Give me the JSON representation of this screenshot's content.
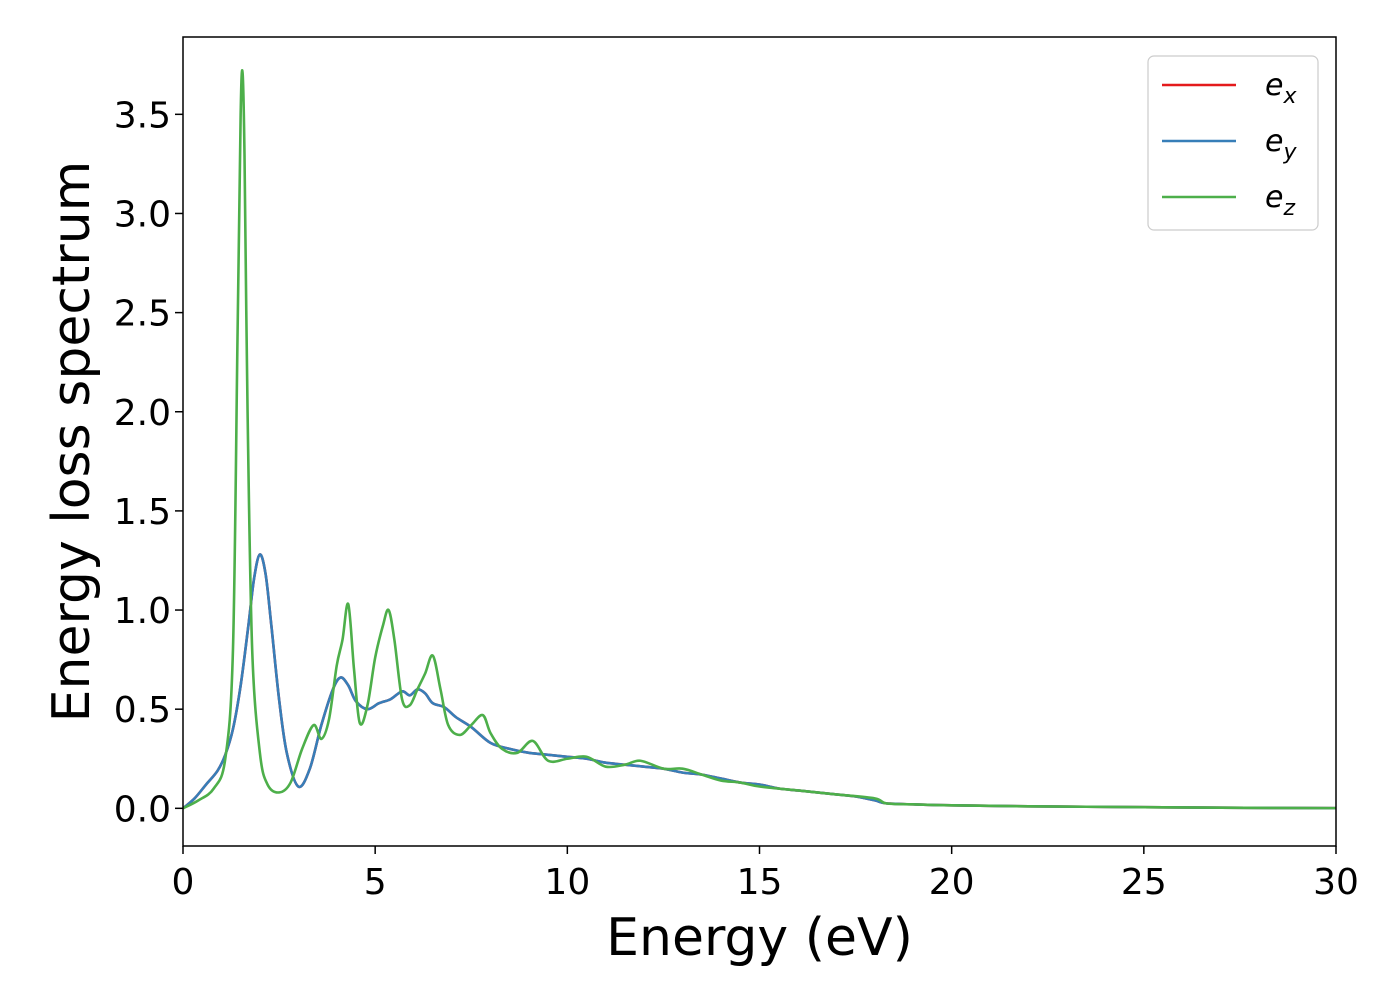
{
  "chart_data": {
    "type": "line",
    "title": "",
    "xlabel": "Energy (eV)",
    "ylabel": "Energy loss spectrum",
    "xlim": [
      0,
      30
    ],
    "ylim": [
      -0.19,
      3.89
    ],
    "xticks": [
      0,
      5,
      10,
      15,
      20,
      25,
      30
    ],
    "xtick_labels": [
      "0",
      "5",
      "10",
      "15",
      "20",
      "25",
      "30"
    ],
    "yticks": [
      0.0,
      0.5,
      1.0,
      1.5,
      2.0,
      2.5,
      3.0,
      3.5
    ],
    "ytick_labels": [
      "0.0",
      "0.5",
      "1.0",
      "1.5",
      "2.0",
      "2.5",
      "3.0",
      "3.5"
    ],
    "grid": false,
    "legend_position": "top-right",
    "series": [
      {
        "name": "e_x",
        "legend_base": "e",
        "legend_sub": "x",
        "color": "#e41a1c",
        "x": [
          0,
          0.3,
          0.6,
          0.9,
          1.1,
          1.3,
          1.5,
          1.7,
          1.85,
          2.0,
          2.15,
          2.3,
          2.5,
          2.7,
          3.0,
          3.3,
          3.6,
          3.9,
          4.1,
          4.3,
          4.5,
          4.8,
          5.1,
          5.4,
          5.7,
          5.9,
          6.1,
          6.3,
          6.5,
          6.8,
          7.1,
          7.5,
          8.0,
          8.5,
          9.0,
          9.5,
          10.0,
          10.5,
          11.0,
          11.5,
          12.0,
          12.5,
          13.0,
          13.5,
          14.0,
          14.5,
          15.0,
          15.5,
          16.0,
          16.5,
          17.0,
          17.5,
          18.0,
          18.3,
          19.0,
          20.0,
          22.0,
          25.0,
          27.0,
          30.0
        ],
        "y": [
          0,
          0.05,
          0.12,
          0.19,
          0.27,
          0.4,
          0.62,
          0.92,
          1.16,
          1.28,
          1.18,
          0.92,
          0.55,
          0.28,
          0.11,
          0.2,
          0.42,
          0.6,
          0.66,
          0.62,
          0.54,
          0.5,
          0.53,
          0.55,
          0.59,
          0.57,
          0.6,
          0.58,
          0.53,
          0.51,
          0.46,
          0.41,
          0.33,
          0.3,
          0.28,
          0.27,
          0.26,
          0.25,
          0.23,
          0.22,
          0.21,
          0.2,
          0.18,
          0.17,
          0.15,
          0.13,
          0.12,
          0.1,
          0.09,
          0.08,
          0.07,
          0.06,
          0.04,
          0.025,
          0.02,
          0.015,
          0.01,
          0.006,
          0.003,
          0.001
        ]
      },
      {
        "name": "e_y",
        "legend_base": "e",
        "legend_sub": "y",
        "color": "#377eb8",
        "x": [
          0,
          0.3,
          0.6,
          0.9,
          1.1,
          1.3,
          1.5,
          1.7,
          1.85,
          2.0,
          2.15,
          2.3,
          2.5,
          2.7,
          3.0,
          3.3,
          3.6,
          3.9,
          4.1,
          4.3,
          4.5,
          4.8,
          5.1,
          5.4,
          5.7,
          5.9,
          6.1,
          6.3,
          6.5,
          6.8,
          7.1,
          7.5,
          8.0,
          8.5,
          9.0,
          9.5,
          10.0,
          10.5,
          11.0,
          11.5,
          12.0,
          12.5,
          13.0,
          13.5,
          14.0,
          14.5,
          15.0,
          15.5,
          16.0,
          16.5,
          17.0,
          17.5,
          18.0,
          18.3,
          19.0,
          20.0,
          22.0,
          25.0,
          27.0,
          30.0
        ],
        "y": [
          0,
          0.05,
          0.12,
          0.19,
          0.27,
          0.4,
          0.62,
          0.92,
          1.16,
          1.28,
          1.18,
          0.92,
          0.55,
          0.28,
          0.11,
          0.2,
          0.42,
          0.6,
          0.66,
          0.62,
          0.54,
          0.5,
          0.53,
          0.55,
          0.59,
          0.57,
          0.6,
          0.58,
          0.53,
          0.51,
          0.46,
          0.41,
          0.33,
          0.3,
          0.28,
          0.27,
          0.26,
          0.25,
          0.23,
          0.22,
          0.21,
          0.2,
          0.18,
          0.17,
          0.15,
          0.13,
          0.12,
          0.1,
          0.09,
          0.08,
          0.07,
          0.06,
          0.04,
          0.025,
          0.02,
          0.015,
          0.01,
          0.006,
          0.003,
          0.001
        ]
      },
      {
        "name": "e_z",
        "legend_base": "e",
        "legend_sub": "z",
        "color": "#4daf4a",
        "x": [
          0,
          0.4,
          0.8,
          1.1,
          1.3,
          1.42,
          1.5,
          1.55,
          1.6,
          1.68,
          1.8,
          2.0,
          2.2,
          2.5,
          2.8,
          3.1,
          3.4,
          3.6,
          3.8,
          4.0,
          4.15,
          4.3,
          4.45,
          4.6,
          4.8,
          5.0,
          5.2,
          5.35,
          5.5,
          5.7,
          5.9,
          6.1,
          6.3,
          6.5,
          6.7,
          6.9,
          7.2,
          7.5,
          7.8,
          8.0,
          8.3,
          8.7,
          9.1,
          9.5,
          10.0,
          10.5,
          11.0,
          11.5,
          11.9,
          12.5,
          13.0,
          13.5,
          14.0,
          14.5,
          15.0,
          16.0,
          17.0,
          18.0,
          18.3,
          19.0,
          20.0,
          22.0,
          25.0,
          27.0,
          30.0
        ],
        "y": [
          0,
          0.04,
          0.1,
          0.25,
          0.8,
          2.4,
          3.5,
          3.71,
          3.3,
          2.0,
          0.8,
          0.28,
          0.12,
          0.08,
          0.13,
          0.3,
          0.42,
          0.35,
          0.45,
          0.72,
          0.85,
          1.03,
          0.7,
          0.43,
          0.52,
          0.76,
          0.92,
          1.0,
          0.85,
          0.55,
          0.52,
          0.6,
          0.68,
          0.77,
          0.6,
          0.42,
          0.37,
          0.42,
          0.47,
          0.38,
          0.3,
          0.28,
          0.34,
          0.24,
          0.25,
          0.26,
          0.21,
          0.22,
          0.24,
          0.2,
          0.2,
          0.17,
          0.14,
          0.13,
          0.11,
          0.09,
          0.07,
          0.05,
          0.025,
          0.02,
          0.015,
          0.01,
          0.006,
          0.003,
          0.001
        ]
      }
    ]
  }
}
